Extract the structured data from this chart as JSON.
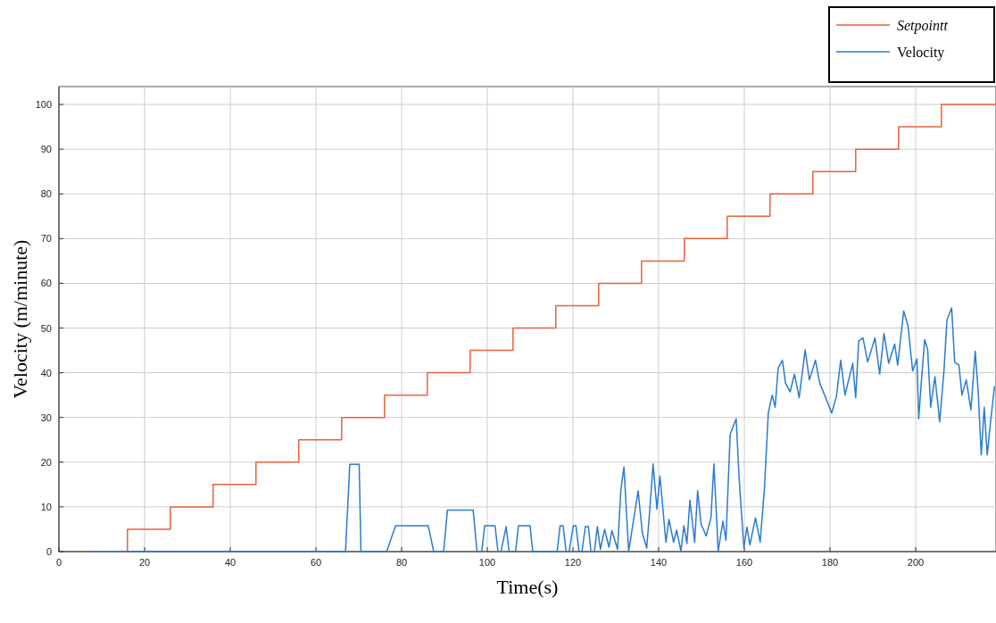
{
  "chart_data": {
    "type": "line",
    "xlabel": "Time(s)",
    "ylabel": "Velocity (m/minute)",
    "xlim": [
      0,
      218.75
    ],
    "ylim": [
      0,
      104
    ],
    "xticks": [
      0,
      20,
      40,
      60,
      80,
      100,
      120,
      140,
      160,
      180,
      200
    ],
    "yticks": [
      0,
      10,
      20,
      30,
      40,
      50,
      60,
      70,
      80,
      90,
      100
    ],
    "grid": true,
    "legend": "top right",
    "series": [
      {
        "name": "Setpointt",
        "type": "step",
        "color": "#e8623e",
        "x": [
          7,
          16,
          26,
          36,
          46,
          56,
          66,
          76,
          86,
          96,
          106,
          116,
          126,
          136,
          146,
          156,
          166,
          176,
          186,
          196,
          206,
          218.75
        ],
        "values": [
          0,
          5,
          10,
          15,
          20,
          25,
          30,
          35,
          40,
          45,
          50,
          55,
          60,
          65,
          70,
          75,
          80,
          85,
          90,
          95,
          100,
          100
        ]
      },
      {
        "name": "Velocity",
        "color": "#2a7bd0",
        "x": [
          7,
          66.9,
          67.9,
          70.1,
          70.5,
          76.5,
          78.6,
          86.2,
          87.5,
          89.8,
          90.7,
          96.7,
          97.6,
          98.7,
          99.4,
          101.8,
          102.5,
          103.2,
          104.4,
          105.1,
          106.6,
          107.3,
          110,
          110.6,
          115.6,
          116.3,
          117,
          117.7,
          118.4,
          119.1,
          120.1,
          120.7,
          121.4,
          122.1,
          122.9,
          123.6,
          124.2,
          125,
          125.7,
          126.4,
          127.4,
          128.4,
          129.1,
          130.4,
          131.2,
          131.9,
          133,
          135.2,
          136.2,
          137.2,
          137.9,
          138.7,
          139.6,
          140.3,
          141.7,
          142.4,
          143.5,
          144.2,
          145.2,
          145.9,
          146.6,
          147.3,
          148.4,
          149.1,
          149.9,
          151.1,
          152.2,
          152.9,
          153.9,
          155,
          155.7,
          156.7,
          158.1,
          158.8,
          159.9,
          160.6,
          161.3,
          162.6,
          163.7,
          164.7,
          165.6,
          166.5,
          167.2,
          167.9,
          168.9,
          169.6,
          170.7,
          171.7,
          172.8,
          174.2,
          175.2,
          176.6,
          177.6,
          179,
          180.4,
          181.5,
          182.5,
          183.5,
          185.3,
          186,
          186.7,
          187.7,
          188.8,
          190.5,
          191.6,
          192.6,
          193.7,
          195.1,
          195.8,
          197.2,
          198.2,
          199.3,
          200.3,
          200.7,
          201.3,
          202.1,
          202.8,
          203.5,
          204.5,
          205.6,
          206.6,
          207.3,
          208.4,
          209.1,
          210.1,
          210.8,
          211.8,
          212.9,
          213.9,
          214.6,
          215.3,
          216,
          216.7,
          217.4,
          218.4
        ],
        "values": [
          0,
          0,
          19.5,
          19.5,
          0,
          0,
          5.8,
          5.8,
          0,
          0,
          9.3,
          9.3,
          0,
          0,
          5.8,
          5.8,
          0,
          0,
          5.6,
          0,
          0,
          5.8,
          5.8,
          0,
          0,
          0,
          5.8,
          5.8,
          0,
          0,
          5.8,
          5.8,
          0,
          0,
          5.6,
          5.6,
          0,
          0,
          5.6,
          0.5,
          5,
          1,
          4.7,
          0.5,
          14,
          18.9,
          0,
          13.6,
          4.2,
          0.8,
          8.9,
          19.6,
          9.5,
          16.9,
          2.1,
          7.2,
          2.1,
          4.8,
          0.1,
          5.8,
          1.8,
          11.5,
          2.1,
          13.6,
          6.2,
          3.5,
          7.5,
          19.6,
          0.1,
          6.8,
          2.5,
          26.3,
          29.7,
          16.2,
          0.8,
          5.5,
          1.5,
          7.5,
          2.1,
          14.2,
          31,
          35,
          32.3,
          41.1,
          42.8,
          37.7,
          35.7,
          39.7,
          34.4,
          45.1,
          38.4,
          42.8,
          37.7,
          34.4,
          31,
          34.7,
          42.8,
          35,
          42.1,
          34.4,
          47.1,
          47.8,
          42.4,
          47.8,
          39.7,
          48.8,
          42.1,
          46.4,
          41.7,
          53.8,
          50.5,
          40.4,
          43.1,
          29.7,
          37.7,
          47.4,
          45.1,
          32.3,
          39.1,
          29,
          40.4,
          51.8,
          54.5,
          42.4,
          41.7,
          35,
          38.4,
          31.7,
          44.8,
          35.7,
          21.6,
          32.3,
          21.6,
          28.3,
          37
        ]
      }
    ]
  }
}
